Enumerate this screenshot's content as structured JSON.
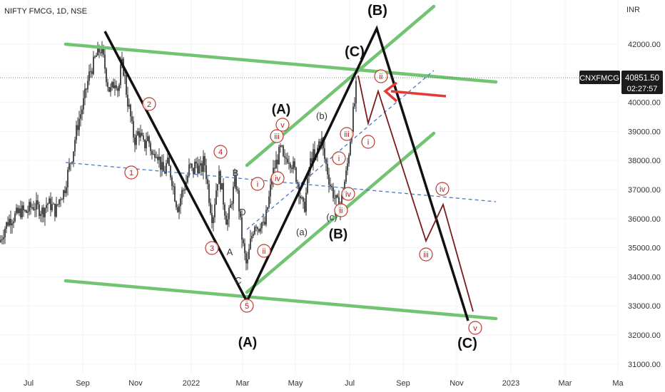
{
  "title": "NIFTY FMCG, 1D, NSE",
  "currency_label": "INR",
  "symbol_label": "CNXFMCG",
  "last_price": "40851.50",
  "countdown": "02:27:57",
  "colors": {
    "candle": "#222222",
    "green_channel": "#72c472",
    "black_path": "#111111",
    "projection": "#7a1a1a",
    "circled": "#c0392b",
    "dashed": "#4a78c8",
    "arrow": "#e53935",
    "price_tag_bg": "#1c1c1c"
  },
  "chart_data": {
    "type": "candlestick",
    "title": "NIFTY FMCG, 1D, NSE",
    "x_ticks": [
      "Jul",
      "Sep",
      "Nov",
      "2022",
      "Mar",
      "May",
      "Jul",
      "Sep",
      "Nov",
      "2023",
      "Mar",
      "Ma"
    ],
    "y_ticks": [
      "42000.00",
      "41000.00",
      "40000.00",
      "39000.00",
      "38000.00",
      "37000.00",
      "36000.00",
      "35000.00",
      "34000.00",
      "33000.00",
      "32000.00",
      "31000.00"
    ],
    "ylim": [
      30700,
      43200
    ],
    "price_path": [
      [
        0,
        35200
      ],
      [
        6,
        35650
      ],
      [
        12,
        35950
      ],
      [
        18,
        36050
      ],
      [
        24,
        36150
      ],
      [
        30,
        36280
      ],
      [
        36,
        36200
      ],
      [
        42,
        36380
      ],
      [
        48,
        36450
      ],
      [
        54,
        36350
      ],
      [
        60,
        36250
      ],
      [
        66,
        36550
      ],
      [
        72,
        36450
      ],
      [
        78,
        36250
      ],
      [
        84,
        36750
      ],
      [
        90,
        36950
      ],
      [
        94,
        37450
      ],
      [
        98,
        37900
      ],
      [
        102,
        38250
      ],
      [
        106,
        38900
      ],
      [
        110,
        39350
      ],
      [
        114,
        39700
      ],
      [
        118,
        40100
      ],
      [
        122,
        40600
      ],
      [
        126,
        41050
      ],
      [
        130,
        41250
      ],
      [
        134,
        41550
      ],
      [
        138,
        41750
      ],
      [
        142,
        41850
      ],
      [
        146,
        41350
      ],
      [
        150,
        40750
      ],
      [
        154,
        40350
      ],
      [
        158,
        40550
      ],
      [
        162,
        40850
      ],
      [
        166,
        40350
      ],
      [
        170,
        41350
      ],
      [
        174,
        41050
      ],
      [
        178,
        40150
      ],
      [
        182,
        39650
      ],
      [
        186,
        38950
      ],
      [
        190,
        38650
      ],
      [
        194,
        39050
      ],
      [
        198,
        38750
      ],
      [
        202,
        38450
      ],
      [
        206,
        38850
      ],
      [
        210,
        38550
      ],
      [
        214,
        38050
      ],
      [
        218,
        38450
      ],
      [
        222,
        38150
      ],
      [
        226,
        37750
      ],
      [
        230,
        37550
      ],
      [
        234,
        37950
      ],
      [
        238,
        37650
      ],
      [
        242,
        37250
      ],
      [
        246,
        36650
      ],
      [
        250,
        36350
      ],
      [
        254,
        36850
      ],
      [
        258,
        37050
      ],
      [
        262,
        37350
      ],
      [
        266,
        37850
      ],
      [
        270,
        37550
      ],
      [
        274,
        37950
      ],
      [
        278,
        37750
      ],
      [
        282,
        37650
      ],
      [
        286,
        38050
      ],
      [
        290,
        37350
      ],
      [
        294,
        36550
      ],
      [
        298,
        35950
      ],
      [
        302,
        36850
      ],
      [
        306,
        37550
      ],
      [
        310,
        37150
      ],
      [
        314,
        36450
      ],
      [
        318,
        35850
      ],
      [
        322,
        36250
      ],
      [
        326,
        36850
      ],
      [
        330,
        37350
      ],
      [
        334,
        36650
      ],
      [
        338,
        35550
      ],
      [
        342,
        34850
      ],
      [
        346,
        34300
      ],
      [
        350,
        35050
      ],
      [
        354,
        35550
      ],
      [
        358,
        35950
      ],
      [
        362,
        35650
      ],
      [
        366,
        35950
      ],
      [
        370,
        35650
      ],
      [
        374,
        36250
      ],
      [
        378,
        36850
      ],
      [
        382,
        37550
      ],
      [
        386,
        37850
      ],
      [
        390,
        38150
      ],
      [
        394,
        38450
      ],
      [
        398,
        37850
      ],
      [
        402,
        38150
      ],
      [
        406,
        38050
      ],
      [
        410,
        37850
      ],
      [
        414,
        37550
      ],
      [
        418,
        37150
      ],
      [
        422,
        36650
      ],
      [
        426,
        36250
      ],
      [
        430,
        37050
      ],
      [
        434,
        37850
      ],
      [
        438,
        38250
      ],
      [
        442,
        37950
      ],
      [
        446,
        38550
      ],
      [
        450,
        38850
      ],
      [
        454,
        38150
      ],
      [
        458,
        37750
      ],
      [
        462,
        37250
      ],
      [
        466,
        36950
      ],
      [
        470,
        36650
      ],
      [
        474,
        36450
      ],
      [
        478,
        36550
      ],
      [
        482,
        37150
      ],
      [
        486,
        37650
      ],
      [
        490,
        38550
      ],
      [
        494,
        39450
      ],
      [
        498,
        40150
      ],
      [
        500,
        40850
      ]
    ],
    "annotations_black": [
      {
        "text": "(B)",
        "x": 529,
        "y": 14,
        "size": 20
      },
      {
        "text": "(C)",
        "x": 497,
        "y": 72,
        "size": 20
      },
      {
        "text": "(A)",
        "x": 394,
        "y": 153,
        "size": 19
      },
      {
        "text": "(B)",
        "x": 474,
        "y": 328,
        "size": 19
      },
      {
        "text": "(A)",
        "x": 347,
        "y": 480,
        "size": 19
      },
      {
        "text": "(C)",
        "x": 655,
        "y": 481,
        "size": 20
      }
    ],
    "annotations_small": [
      {
        "text": "(b)",
        "x": 451,
        "y": 163
      },
      {
        "text": "(a)",
        "x": 423,
        "y": 326
      },
      {
        "text": "(c)",
        "x": 465,
        "y": 305
      },
      {
        "text": "B",
        "x": 330,
        "y": 243
      },
      {
        "text": "D",
        "x": 340,
        "y": 298
      },
      {
        "text": "A",
        "x": 322,
        "y": 354
      },
      {
        "text": "C",
        "x": 334,
        "y": 394
      }
    ],
    "circled_labels": [
      {
        "text": "1",
        "x": 184,
        "y": 242
      },
      {
        "text": "2",
        "x": 209,
        "y": 146
      },
      {
        "text": "3",
        "x": 297,
        "y": 348
      },
      {
        "text": "4",
        "x": 309,
        "y": 213
      },
      {
        "text": "5",
        "x": 346,
        "y": 429
      },
      {
        "text": "i",
        "x": 361,
        "y": 258
      },
      {
        "text": "ii",
        "x": 370,
        "y": 352
      },
      {
        "text": "iii",
        "x": 388,
        "y": 191
      },
      {
        "text": "iv",
        "x": 389,
        "y": 250
      },
      {
        "text": "v",
        "x": 396,
        "y": 175
      },
      {
        "text": "i",
        "x": 475,
        "y": 222
      },
      {
        "text": "iii",
        "x": 486,
        "y": 188
      },
      {
        "text": "iv",
        "x": 488,
        "y": 272
      },
      {
        "text": "ii",
        "x": 478,
        "y": 295
      },
      {
        "text": "i",
        "x": 516,
        "y": 199
      },
      {
        "text": "ii",
        "x": 534,
        "y": 107
      },
      {
        "text": "iii",
        "x": 597,
        "y": 357
      },
      {
        "text": "iv",
        "x": 620,
        "y": 265
      },
      {
        "text": "v",
        "x": 666,
        "y": 460
      }
    ]
  }
}
